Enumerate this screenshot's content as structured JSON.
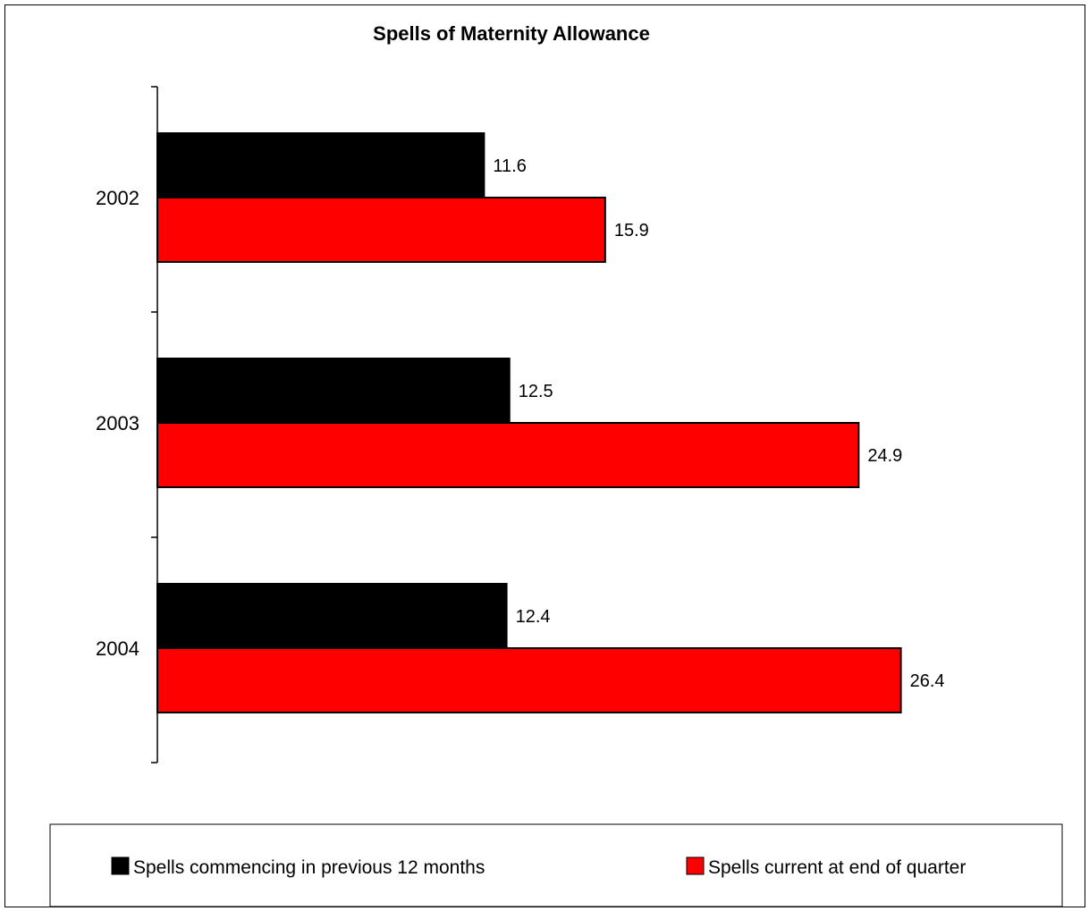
{
  "chart_data": {
    "type": "bar",
    "orientation": "horizontal",
    "title": "Spells of Maternity Allowance",
    "categories": [
      "2002",
      "2003",
      "2004"
    ],
    "series": [
      {
        "name": "Spells commencing in previous 12 months",
        "color": "#000000",
        "values": [
          11.6,
          12.5,
          12.4
        ],
        "labels": [
          "11.6",
          "12.5",
          "12.4"
        ]
      },
      {
        "name": "Spells current at end of quarter",
        "color": "#ff0000",
        "values": [
          15.9,
          24.9,
          26.4
        ],
        "labels": [
          "15.9",
          "24.9",
          "26.4"
        ]
      }
    ],
    "xlim": [
      0,
      30
    ],
    "grid": false,
    "legend_position": "bottom"
  }
}
